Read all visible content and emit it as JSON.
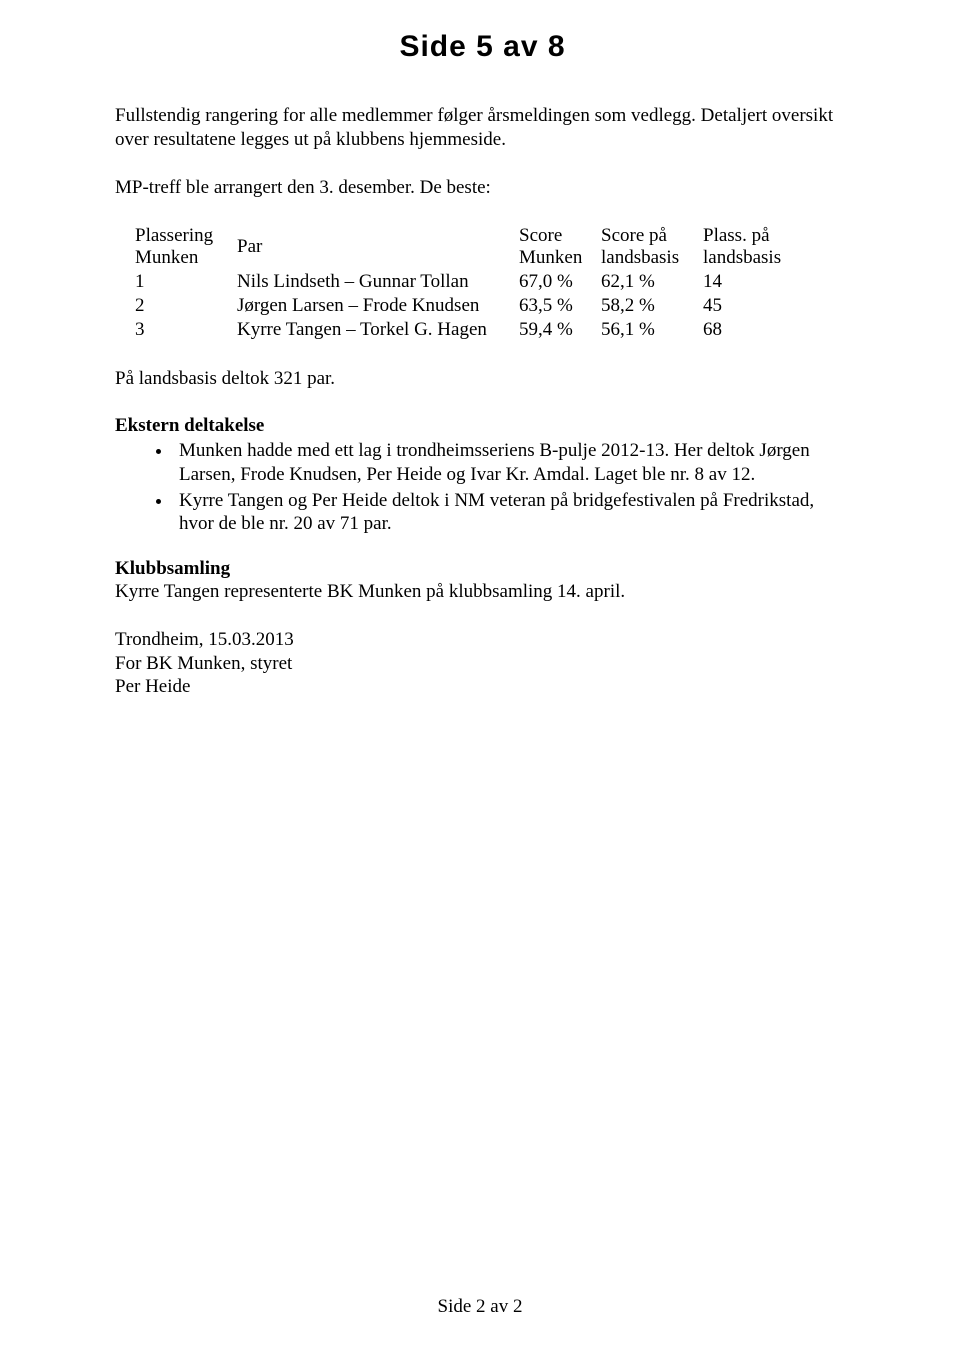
{
  "header_handwritten": "Side 5 av 8",
  "intro_para": "Fullstendig rangering for alle medlemmer følger årsmeldingen som vedlegg. Detaljert oversikt over resultatene legges ut på klubbens hjemmeside.",
  "mp_treff_para": "MP-treff ble arrangert den 3. desember. De beste:",
  "table": {
    "head": {
      "plassering_l1": "Plassering",
      "plassering_l2": "Munken",
      "par": "Par",
      "score_m_l1": "Score",
      "score_m_l2": "Munken",
      "score_l_l1": "Score på",
      "score_l_l2": "landsbasis",
      "plass_l_l1": "Plass. på",
      "plass_l_l2": "landsbasis"
    },
    "rows": [
      {
        "plass": "1",
        "par": "Nils Lindseth – Gunnar Tollan",
        "score_m": "67,0 %",
        "score_l": "62,1 %",
        "plass_l": "14"
      },
      {
        "plass": "2",
        "par": "Jørgen Larsen – Frode Knudsen",
        "score_m": "63,5 %",
        "score_l": "58,2 %",
        "plass_l": "45"
      },
      {
        "plass": "3",
        "par": "Kyrre Tangen – Torkel G. Hagen",
        "score_m": "59,4 %",
        "score_l": "56,1 %",
        "plass_l": "68"
      }
    ]
  },
  "landsbasis_para": "På landsbasis deltok 321 par.",
  "ekstern_heading": "Ekstern deltakelse",
  "ekstern_bullets": [
    "Munken hadde med ett lag i trondheimsseriens B-pulje 2012-13.  Her deltok Jørgen Larsen, Frode Knudsen, Per Heide og Ivar Kr. Amdal. Laget ble nr. 8 av 12.",
    "Kyrre Tangen og Per Heide deltok i NM veteran på bridgefestivalen på Fredrikstad, hvor de ble nr. 20 av 71 par."
  ],
  "klubbsamling_heading": "Klubbsamling",
  "klubbsamling_para": "Kyrre Tangen representerte BK Munken på klubbsamling 14. april.",
  "sign_off_1": "Trondheim, 15.03.2013",
  "sign_off_2": "For BK Munken, styret",
  "sign_off_3": "Per Heide",
  "footer": "Side 2 av 2"
}
